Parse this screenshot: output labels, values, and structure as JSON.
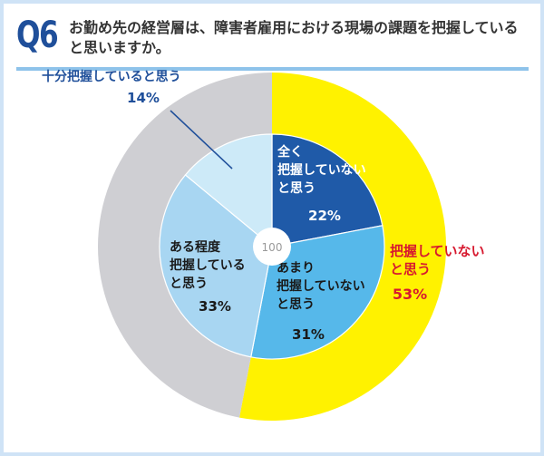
{
  "header": {
    "badge": "Q6",
    "question": "お勤め先の経営層は、障害者雇用における現場の課題を把握していると思いますか。"
  },
  "center_label": "100",
  "chart_data": {
    "type": "pie",
    "inner": [
      {
        "lines": [
          "全く",
          "把握していない",
          "と思う"
        ],
        "pct": "22%",
        "value": 22,
        "color": "#1f5aa8",
        "text_color": "#ffffff"
      },
      {
        "lines": [
          "あまり",
          "把握していない",
          "と思う"
        ],
        "pct": "31%",
        "value": 31,
        "color": "#56b8ea",
        "text_color": "#1a1a1a"
      },
      {
        "lines": [
          "ある程度",
          "把握している",
          "と思う"
        ],
        "pct": "33%",
        "value": 33,
        "color": "#a8d6f2",
        "text_color": "#1a1a1a"
      },
      {
        "lines": [
          "十分把握していると思う"
        ],
        "pct": "14%",
        "value": 14,
        "color": "#cdeaf8",
        "text_color": "#1f4f9a"
      }
    ],
    "outer": [
      {
        "lines": [
          "把握していない",
          "と思う"
        ],
        "pct": "53%",
        "value": 53,
        "color": "#fff200",
        "text_color": "#d7192f"
      },
      {
        "lines": [],
        "pct": "",
        "value": 47,
        "color": "#cfcfd3",
        "text_color": "#333333"
      }
    ]
  }
}
